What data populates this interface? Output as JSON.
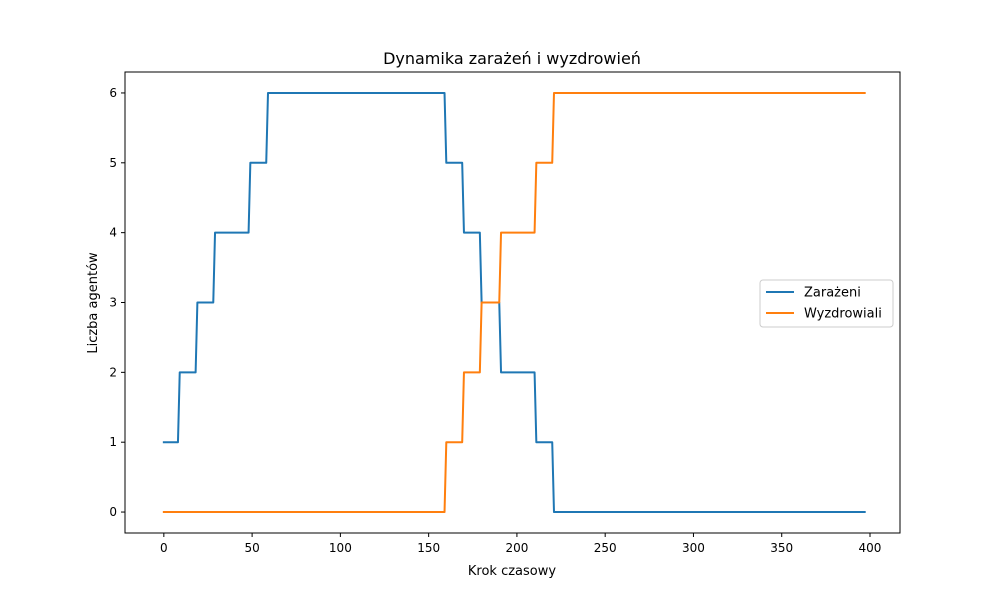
{
  "chart_data": {
    "type": "line",
    "title": "Dynamika zarażeń i wyzdrowień",
    "xlabel": "Krok czasowy",
    "ylabel": "Liczba agentów",
    "xlim": [
      -22,
      417
    ],
    "ylim": [
      -0.3,
      6.3
    ],
    "xticks": [
      0,
      50,
      100,
      150,
      200,
      250,
      300,
      350,
      400
    ],
    "yticks": [
      0,
      1,
      2,
      3,
      4,
      5,
      6
    ],
    "grid": false,
    "legend_position": "center-right",
    "series": [
      {
        "name": "Zarażeni",
        "color": "#1f77b4",
        "x": [
          0,
          8,
          9,
          18,
          19,
          28,
          29,
          48,
          49,
          58,
          59,
          159,
          160,
          169,
          170,
          179,
          180,
          190,
          191,
          210,
          211,
          220,
          221,
          397
        ],
        "y": [
          1,
          1,
          2,
          2,
          3,
          3,
          4,
          4,
          5,
          5,
          6,
          6,
          5,
          5,
          4,
          4,
          3,
          3,
          2,
          2,
          1,
          1,
          0,
          0
        ]
      },
      {
        "name": "Wyzdrowiali",
        "color": "#ff7f0e",
        "x": [
          0,
          159,
          160,
          169,
          170,
          179,
          180,
          190,
          191,
          210,
          211,
          220,
          221,
          397
        ],
        "y": [
          0,
          0,
          1,
          1,
          2,
          2,
          3,
          3,
          4,
          4,
          5,
          5,
          6,
          6
        ]
      }
    ]
  }
}
